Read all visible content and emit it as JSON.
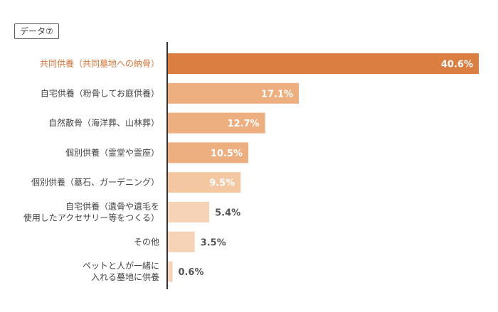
{
  "tag": {
    "label": "データ⑦"
  },
  "colors": {
    "highlight_bar": "#db7e42",
    "highlight_text": "#d8763a",
    "bar_strong": "#edae80",
    "bar_mid": "#f0b98f",
    "bar_light": "#f4c7a3",
    "bar_pale": "#f6d2b6",
    "label_dark": "#555555",
    "axis": "#333333"
  },
  "chart_data": {
    "type": "bar",
    "orientation": "horizontal",
    "categories": [
      "共同供養（共同墓地への納骨）",
      "自宅供養（粉骨してお庭供養）",
      "自然散骨（海洋葬、山林葬）",
      "個別供養（霊堂や霊座）",
      "個別供養（墓石、ガーデニング）",
      "自宅供養（遺骨や遺毛を\n使用したアクセサリー等をつくる）",
      "その他",
      "ペットと人が一緒に\n入れる墓地に供養"
    ],
    "values": [
      40.6,
      17.1,
      12.7,
      10.5,
      9.5,
      5.4,
      3.5,
      0.6
    ],
    "value_labels": [
      "40.6%",
      "17.1%",
      "12.7%",
      "10.5%",
      "9.5%",
      "5.4%",
      "3.5%",
      "0.6%"
    ],
    "unit": "%",
    "xlim": [
      0,
      40.6
    ],
    "grid": false,
    "legend": "none",
    "highlight_index": 0
  }
}
